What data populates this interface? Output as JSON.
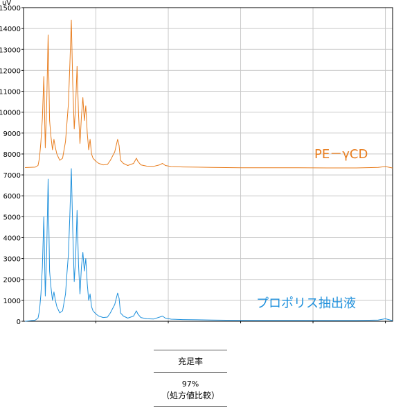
{
  "chart_data": {
    "type": "line",
    "y_unit": "uV",
    "x_unit": "min",
    "xlim": [
      0,
      25.5
    ],
    "ylim": [
      0,
      15000
    ],
    "x_ticks": [
      "5.0",
      "10.0",
      "15.0",
      "20.0",
      "25.0"
    ],
    "x_tick_values": [
      5,
      10,
      15,
      20,
      25
    ],
    "y_ticks": [
      "0",
      "1000",
      "2000",
      "3000",
      "4000",
      "5000",
      "6000",
      "7000",
      "8000",
      "9000",
      "10000",
      "11000",
      "12000",
      "13000",
      "14000",
      "15000"
    ],
    "y_tick_values": [
      0,
      1000,
      2000,
      3000,
      4000,
      5000,
      6000,
      7000,
      8000,
      9000,
      10000,
      11000,
      12000,
      13000,
      14000,
      15000
    ],
    "grid": true,
    "series": [
      {
        "name": "PE－γCD",
        "color": "#e87d1e",
        "x": [
          0.1,
          0.8,
          1.0,
          1.1,
          1.2,
          1.3,
          1.4,
          1.5,
          1.6,
          1.7,
          1.8,
          1.9,
          2.0,
          2.1,
          2.2,
          2.3,
          2.5,
          2.7,
          2.9,
          3.0,
          3.1,
          3.2,
          3.3,
          3.4,
          3.5,
          3.6,
          3.7,
          3.8,
          3.9,
          4.0,
          4.1,
          4.2,
          4.3,
          4.4,
          4.5,
          4.6,
          4.7,
          4.8,
          5.0,
          5.2,
          5.5,
          5.8,
          6.0,
          6.3,
          6.5,
          6.6,
          6.7,
          6.9,
          7.2,
          7.6,
          7.8,
          7.9,
          8.1,
          8.5,
          9.0,
          9.4,
          9.6,
          9.8,
          10.2,
          11.0,
          12.0,
          13.0,
          14.0,
          15.0,
          17.0,
          19.0,
          21.0,
          23.0,
          24.5,
          25.0,
          25.5
        ],
        "y": [
          7350,
          7370,
          7450,
          7800,
          8600,
          9700,
          11700,
          8300,
          10300,
          13700,
          9600,
          8800,
          8200,
          8700,
          8300,
          8000,
          7700,
          7800,
          8600,
          9500,
          10400,
          12300,
          14400,
          11300,
          9200,
          10300,
          12200,
          9900,
          8500,
          9800,
          10700,
          9600,
          10300,
          9000,
          8200,
          8700,
          8000,
          7800,
          7650,
          7550,
          7480,
          7500,
          7700,
          8100,
          8700,
          8400,
          7700,
          7550,
          7450,
          7550,
          7800,
          7650,
          7480,
          7420,
          7410,
          7480,
          7550,
          7450,
          7400,
          7380,
          7370,
          7360,
          7350,
          7345,
          7340,
          7340,
          7335,
          7335,
          7360,
          7400,
          7330
        ]
      },
      {
        "name": "プロポリス抽出液",
        "color": "#1e90dc",
        "x": [
          0.1,
          0.8,
          1.0,
          1.1,
          1.2,
          1.3,
          1.4,
          1.5,
          1.6,
          1.7,
          1.8,
          1.9,
          2.0,
          2.1,
          2.2,
          2.3,
          2.5,
          2.7,
          2.9,
          3.0,
          3.1,
          3.2,
          3.3,
          3.4,
          3.5,
          3.6,
          3.7,
          3.8,
          3.9,
          4.0,
          4.1,
          4.2,
          4.3,
          4.4,
          4.5,
          4.6,
          4.7,
          4.8,
          5.0,
          5.2,
          5.5,
          5.8,
          6.0,
          6.3,
          6.5,
          6.6,
          6.7,
          6.9,
          7.2,
          7.6,
          7.8,
          7.9,
          8.1,
          8.5,
          9.0,
          9.4,
          9.6,
          9.8,
          10.2,
          11.0,
          12.0,
          13.0,
          14.0,
          15.0,
          17.0,
          19.0,
          21.0,
          23.0,
          24.5,
          25.0,
          25.5
        ],
        "y": [
          0,
          50,
          150,
          500,
          1300,
          2600,
          5000,
          1200,
          3300,
          6800,
          2400,
          1600,
          1000,
          1400,
          1000,
          700,
          400,
          500,
          1300,
          2300,
          3200,
          5100,
          7300,
          4300,
          1900,
          3000,
          5300,
          2700,
          1300,
          2600,
          3300,
          2400,
          3000,
          1800,
          1000,
          1300,
          700,
          500,
          350,
          250,
          180,
          200,
          400,
          800,
          1350,
          1100,
          400,
          250,
          150,
          250,
          500,
          350,
          180,
          120,
          110,
          200,
          250,
          150,
          100,
          80,
          70,
          60,
          50,
          45,
          40,
          40,
          35,
          35,
          60,
          120,
          30
        ]
      }
    ],
    "caption": {
      "header": "充足率",
      "value": "97%",
      "note": "（処方値比較）"
    }
  }
}
